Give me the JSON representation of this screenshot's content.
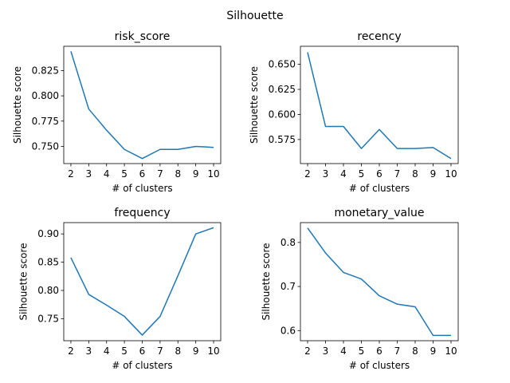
{
  "figure": {
    "suptitle": "Silhouette"
  },
  "chart_data": [
    {
      "type": "line",
      "title": "risk_score",
      "xlabel": "# of clusters",
      "ylabel": "Silhouette score",
      "x": [
        2,
        3,
        4,
        5,
        6,
        7,
        8,
        9,
        10
      ],
      "series": [
        {
          "values": [
            0.844,
            0.787,
            0.766,
            0.747,
            0.738,
            0.747,
            0.747,
            0.75,
            0.749
          ],
          "color": "#1f77b4"
        }
      ],
      "xlim": [
        1.6,
        10.4
      ],
      "ylim": [
        0.733,
        0.849
      ],
      "yticks": [
        0.75,
        0.775,
        0.8,
        0.825
      ],
      "ytick_labels": [
        "0.750",
        "0.775",
        "0.800",
        "0.825"
      ],
      "grid": false
    },
    {
      "type": "line",
      "title": "recency",
      "xlabel": "# of clusters",
      "ylabel": "Silhouette score",
      "x": [
        2,
        3,
        4,
        5,
        6,
        7,
        8,
        9,
        10
      ],
      "series": [
        {
          "values": [
            0.662,
            0.588,
            0.588,
            0.566,
            0.585,
            0.566,
            0.566,
            0.567,
            0.556
          ],
          "color": "#1f77b4"
        }
      ],
      "xlim": [
        1.6,
        10.4
      ],
      "ylim": [
        0.551,
        0.668
      ],
      "yticks": [
        0.575,
        0.6,
        0.625,
        0.65
      ],
      "ytick_labels": [
        "0.575",
        "0.600",
        "0.625",
        "0.650"
      ],
      "grid": false
    },
    {
      "type": "line",
      "title": "frequency",
      "xlabel": "# of clusters",
      "ylabel": "Silhouette score",
      "x": [
        2,
        3,
        4,
        5,
        6,
        7,
        8,
        9,
        10
      ],
      "series": [
        {
          "values": [
            0.858,
            0.793,
            0.774,
            0.754,
            0.721,
            0.754,
            0.826,
            0.9,
            0.911
          ],
          "color": "#1f77b4"
        }
      ],
      "xlim": [
        1.6,
        10.4
      ],
      "ylim": [
        0.711,
        0.92
      ],
      "yticks": [
        0.75,
        0.8,
        0.85,
        0.9
      ],
      "ytick_labels": [
        "0.75",
        "0.80",
        "0.85",
        "0.90"
      ],
      "grid": false
    },
    {
      "type": "line",
      "title": "monetary_value",
      "xlabel": "# of clusters",
      "ylabel": "Silhouette score",
      "x": [
        2,
        3,
        4,
        5,
        6,
        7,
        8,
        9,
        10
      ],
      "series": [
        {
          "values": [
            0.833,
            0.776,
            0.732,
            0.717,
            0.679,
            0.66,
            0.654,
            0.589,
            0.589
          ],
          "color": "#1f77b4"
        }
      ],
      "xlim": [
        1.6,
        10.4
      ],
      "ylim": [
        0.577,
        0.845
      ],
      "yticks": [
        0.6,
        0.7,
        0.8
      ],
      "ytick_labels": [
        "0.6",
        "0.7",
        "0.8"
      ],
      "grid": false
    }
  ]
}
